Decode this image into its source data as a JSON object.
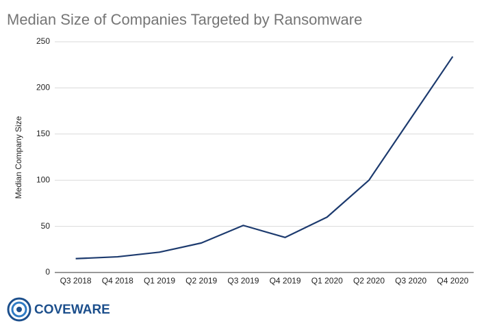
{
  "chart_data": {
    "type": "line",
    "title": "Median Size of Companies Targeted by Ransomware",
    "y_label": "Median Company Size",
    "categories": [
      "Q3 2018",
      "Q4 2018",
      "Q1 2019",
      "Q2 2019",
      "Q3 2019",
      "Q4 2019",
      "Q1 2020",
      "Q2 2020",
      "Q3 2020",
      "Q4 2020"
    ],
    "values": [
      15,
      17,
      22,
      32,
      51,
      38,
      60,
      100,
      167,
      234
    ],
    "color": "#1c3a6e",
    "ylim": [
      0,
      250
    ],
    "yticks": [
      0,
      50,
      100,
      150,
      200,
      250
    ],
    "grid": true
  },
  "logo": {
    "text": "COVEWARE"
  }
}
